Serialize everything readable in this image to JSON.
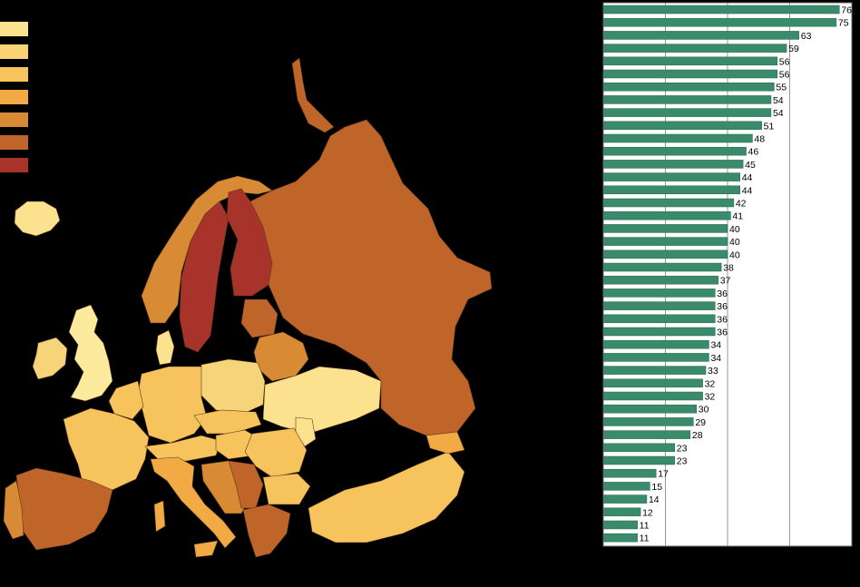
{
  "legend": {
    "colors": [
      "#fce28f",
      "#f9d373",
      "#f6c35c",
      "#f2ab44",
      "#d98a35",
      "#c0652a",
      "#a8332a"
    ]
  },
  "map": {
    "background": "#000000",
    "region_colors": {
      "iceland": "#fce28f",
      "ireland": "#f6d47a",
      "uk": "#fceb9c",
      "norway": "#d98a35",
      "sweden": "#a8332a",
      "finland": "#a8332a",
      "denmark": "#fce28f",
      "russia": "#c0652a",
      "baltics": "#c0652a",
      "belarus": "#d98a35",
      "poland": "#f6d47a",
      "germany": "#f6c35c",
      "benelux": "#f6c35c",
      "france": "#f6c35c",
      "spain": "#c0652a",
      "portugal": "#d98a35",
      "switzerland_austria": "#f6c35c",
      "italy": "#f2ab44",
      "czech_slovakia": "#f6c35c",
      "hungary": "#f6c35c",
      "ukraine": "#fce28f",
      "moldova": "#fce28f",
      "romania": "#f6c35c",
      "balkans": "#d98a35",
      "serbia": "#c0652a",
      "bulgaria": "#f6c35c",
      "greece": "#c0652a",
      "turkey": "#f6c35c",
      "caucasus": "#f2ab44"
    }
  },
  "chart_data": {
    "type": "bar",
    "orientation": "horizontal",
    "values": [
      76,
      75,
      63,
      59,
      56,
      56,
      55,
      54,
      54,
      51,
      48,
      46,
      45,
      44,
      44,
      42,
      41,
      40,
      40,
      40,
      38,
      37,
      36,
      36,
      36,
      36,
      34,
      34,
      33,
      32,
      32,
      30,
      29,
      28,
      23,
      23,
      17,
      15,
      14,
      12,
      11,
      11
    ],
    "xlim": [
      0,
      80
    ],
    "gridlines": [
      20,
      40,
      60
    ],
    "bar_color": "#3a8a6c",
    "grid": true
  }
}
